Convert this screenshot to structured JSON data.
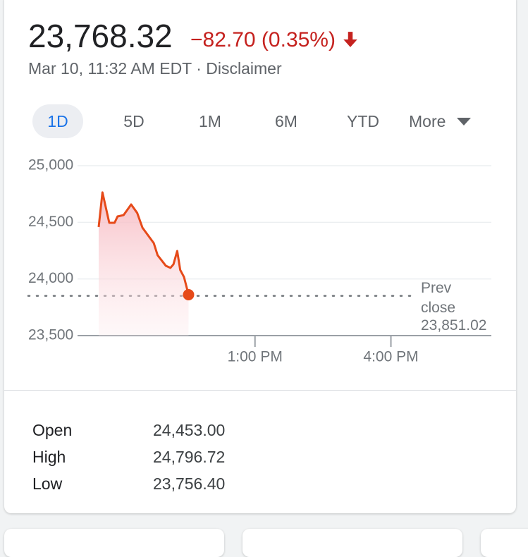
{
  "header": {
    "price": "23,768.32",
    "change": "−82.70 (0.35%)",
    "date": "Mar 10, 11:32 AM EDT",
    "separator": "·",
    "disclaimer": "Disclaimer"
  },
  "tabs": [
    "1D",
    "5D",
    "1M",
    "6M",
    "YTD",
    "More"
  ],
  "active_tab": 0,
  "chart_data": {
    "type": "line",
    "x": [
      573,
      578,
      587,
      594,
      598,
      606,
      616,
      624,
      631,
      646,
      651,
      662,
      668,
      672,
      677,
      681,
      686,
      692
    ],
    "series": [
      {
        "name": "Price",
        "color": "#e64a19",
        "values": [
          24459,
          24764,
          24496,
          24496,
          24552,
          24564,
          24658,
          24583,
          24452,
          24316,
          24210,
          24116,
          24098,
          24129,
          24247,
          24079,
          24017,
          23861
        ]
      }
    ],
    "xlim": [
      545,
      1093
    ],
    "xticks": [
      {
        "value": 780,
        "label": "1:00 PM"
      },
      {
        "value": 960,
        "label": "4:00 PM"
      }
    ],
    "ylim": [
      23500,
      25000
    ],
    "yticks": [
      {
        "value": 23500,
        "label": "23,500"
      },
      {
        "value": 24000,
        "label": "24,000"
      },
      {
        "value": 24500,
        "label": "24,500"
      },
      {
        "value": 25000,
        "label": "25,000"
      }
    ],
    "grid": true,
    "prev_close": {
      "label": "Prev close",
      "value": 23851.02,
      "value_label": "23,851.02"
    }
  },
  "stats": {
    "rows": [
      [
        "Open",
        "24,453.00"
      ],
      [
        "High",
        "24,796.72"
      ],
      [
        "Low",
        "23,756.40"
      ]
    ]
  }
}
